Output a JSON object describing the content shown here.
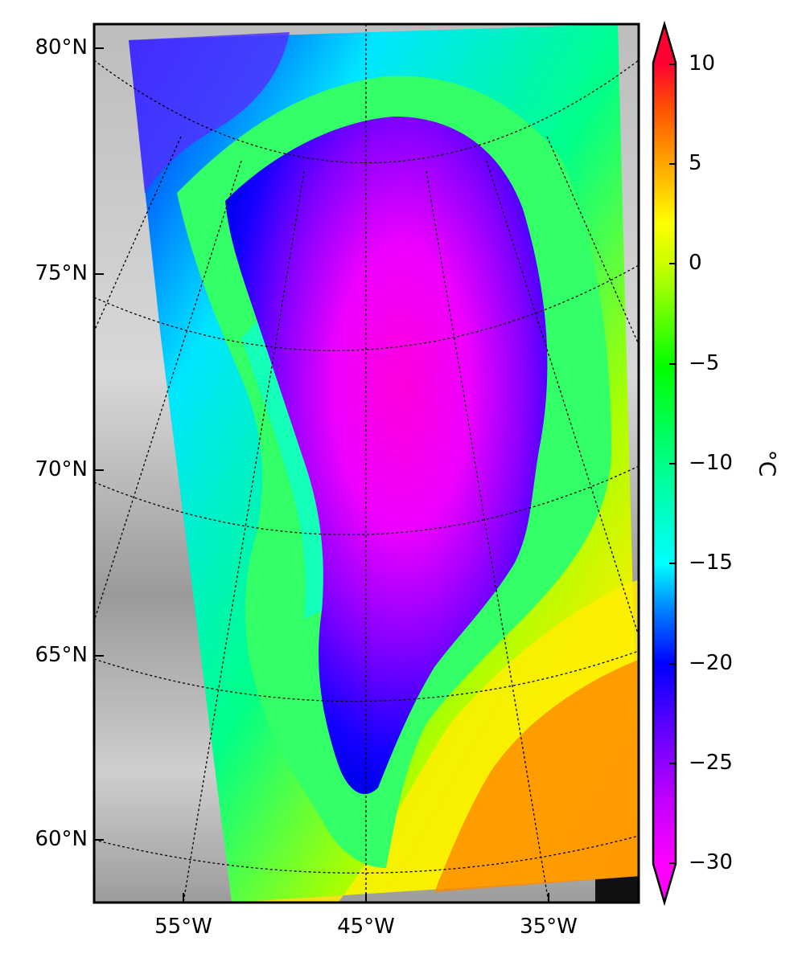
{
  "map": {
    "latitude_labels": [
      "80°N",
      "75°N",
      "70°N",
      "65°N",
      "60°N"
    ],
    "longitude_labels": [
      "55°W",
      "45°W",
      "35°W"
    ]
  },
  "colorbar": {
    "ticks": [
      "10",
      "5",
      "0",
      "−5",
      "−10",
      "−15",
      "−20",
      "−25",
      "−30"
    ],
    "unit": "°C",
    "min": -30,
    "max": 10,
    "extend": "both",
    "colormap": [
      "#ff00ff",
      "#8800ff",
      "#0000ff",
      "#00ccff",
      "#00ffaa",
      "#00ff00",
      "#eeff00",
      "#ffaa00",
      "#ff4400",
      "#ff0033"
    ]
  }
}
